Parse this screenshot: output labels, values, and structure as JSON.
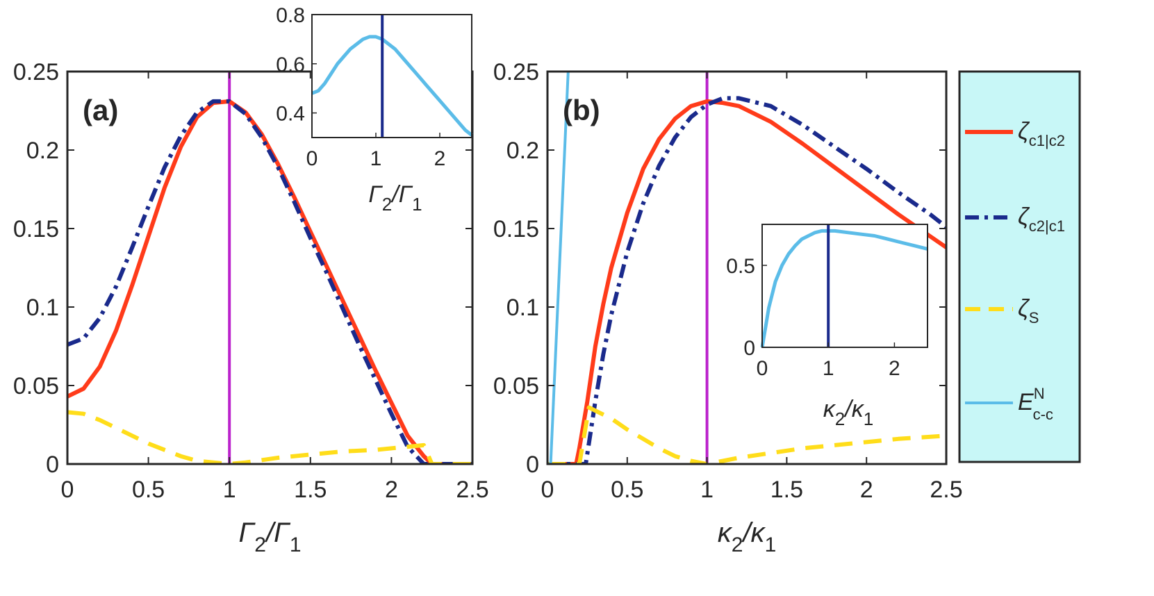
{
  "colors": {
    "c1c2": "#ff3b1a",
    "c2c1": "#1a2a8c",
    "s": "#ffdd1a",
    "ecc": "#5bbce8",
    "marker": "#bb22cc",
    "inset_marker": "#1a2a8c",
    "legend_bg": "#c8f7f7"
  },
  "legend": {
    "items": [
      {
        "symbol": "ζ",
        "sub": "c1|c2",
        "sup": "",
        "style": "solid"
      },
      {
        "symbol": "ζ",
        "sub": "c2|c1",
        "sup": "",
        "style": "dashdot"
      },
      {
        "symbol": "ζ",
        "sub": "S",
        "sup": "",
        "style": "dashed"
      },
      {
        "symbol": "E",
        "sub": "c-c",
        "sup": "N",
        "style": "solid-thin"
      }
    ]
  },
  "chart_data": [
    {
      "id": "a",
      "type": "line",
      "panel_label": "(a)",
      "xlabel": {
        "main": "Γ",
        "sub": "2",
        "sep": "/Γ",
        "sub2": "1"
      },
      "ylabel": "",
      "xlim": [
        0,
        2.5
      ],
      "ylim": [
        0,
        0.25
      ],
      "xticks": [
        "0",
        "0.5",
        "1",
        "1.5",
        "2",
        "2.5"
      ],
      "yticks": [
        "0",
        "0.05",
        "0.1",
        "0.15",
        "0.2",
        "0.25"
      ],
      "vline": 1.0,
      "series": [
        {
          "name": "ζc1|c2",
          "x": [
            0,
            0.1,
            0.2,
            0.3,
            0.4,
            0.5,
            0.6,
            0.7,
            0.8,
            0.9,
            1.0,
            1.1,
            1.2,
            1.3,
            1.4,
            1.5,
            1.6,
            1.7,
            1.8,
            1.9,
            2.0,
            2.1,
            2.2,
            2.25,
            2.5
          ],
          "y": [
            0.043,
            0.048,
            0.062,
            0.085,
            0.114,
            0.145,
            0.176,
            0.202,
            0.221,
            0.23,
            0.231,
            0.224,
            0.21,
            0.191,
            0.17,
            0.148,
            0.126,
            0.104,
            0.082,
            0.06,
            0.039,
            0.018,
            0.005,
            0,
            0
          ]
        },
        {
          "name": "ζc2|c1",
          "x": [
            0,
            0.1,
            0.2,
            0.3,
            0.4,
            0.5,
            0.6,
            0.7,
            0.8,
            0.9,
            1.0,
            1.1,
            1.2,
            1.3,
            1.4,
            1.5,
            1.6,
            1.7,
            1.8,
            1.9,
            2.0,
            2.1,
            2.2,
            2.5
          ],
          "y": [
            0.076,
            0.08,
            0.093,
            0.113,
            0.138,
            0.164,
            0.189,
            0.209,
            0.224,
            0.231,
            0.231,
            0.223,
            0.208,
            0.189,
            0.167,
            0.144,
            0.122,
            0.099,
            0.076,
            0.054,
            0.032,
            0.011,
            0,
            0
          ]
        },
        {
          "name": "ζS",
          "x": [
            0,
            0.1,
            0.2,
            0.3,
            0.4,
            0.5,
            0.6,
            0.7,
            0.8,
            0.9,
            1.0,
            1.1,
            1.3,
            1.5,
            1.7,
            1.9,
            2.1,
            2.2,
            2.25,
            2.5
          ],
          "y": [
            0.033,
            0.032,
            0.028,
            0.023,
            0.018,
            0.013,
            0.009,
            0.005,
            0.002,
            0.001,
            0,
            0.001,
            0.004,
            0.006,
            0.008,
            0.009,
            0.011,
            0.012,
            0,
            0
          ]
        }
      ],
      "inset": {
        "xlim": [
          0,
          2.5
        ],
        "ylim": [
          0.3,
          0.8
        ],
        "xticks": [
          "0",
          "1",
          "2"
        ],
        "yticks": [
          "0.4",
          "0.6",
          "0.8"
        ],
        "xlabel": {
          "main": "Γ",
          "sub": "2",
          "sep": "/Γ",
          "sub2": "1"
        },
        "vline": 1.1,
        "series": [
          {
            "name": "EN c-c",
            "x": [
              0,
              0.1,
              0.2,
              0.3,
              0.4,
              0.5,
              0.6,
              0.7,
              0.8,
              0.9,
              1.0,
              1.1,
              1.2,
              1.3,
              1.4,
              1.5,
              1.6,
              1.7,
              1.8,
              1.9,
              2.0,
              2.1,
              2.2,
              2.3,
              2.4,
              2.5
            ],
            "y": [
              0.48,
              0.49,
              0.52,
              0.56,
              0.6,
              0.63,
              0.66,
              0.68,
              0.7,
              0.71,
              0.71,
              0.7,
              0.68,
              0.66,
              0.63,
              0.6,
              0.57,
              0.54,
              0.51,
              0.48,
              0.45,
              0.42,
              0.39,
              0.36,
              0.33,
              0.31
            ]
          }
        ]
      }
    },
    {
      "id": "b",
      "type": "line",
      "panel_label": "(b)",
      "xlabel": {
        "main": "κ",
        "sub": "2",
        "sep": "/κ",
        "sub2": "1"
      },
      "ylabel": "",
      "xlim": [
        0,
        2.5
      ],
      "ylim": [
        0,
        0.25
      ],
      "xticks": [
        "0",
        "0.5",
        "1",
        "1.5",
        "2",
        "2.5"
      ],
      "yticks": [
        "0",
        "0.05",
        "0.1",
        "0.15",
        "0.2",
        "0.25"
      ],
      "vline": 1.0,
      "series": [
        {
          "name": "ζc1|c2",
          "x": [
            0,
            0.18,
            0.2,
            0.25,
            0.3,
            0.35,
            0.4,
            0.5,
            0.6,
            0.7,
            0.8,
            0.9,
            1.0,
            1.1,
            1.2,
            1.4,
            1.6,
            1.8,
            2.0,
            2.2,
            2.4,
            2.5
          ],
          "y": [
            0,
            0,
            0.01,
            0.04,
            0.075,
            0.102,
            0.125,
            0.16,
            0.188,
            0.207,
            0.22,
            0.228,
            0.231,
            0.23,
            0.228,
            0.218,
            0.204,
            0.189,
            0.174,
            0.159,
            0.145,
            0.138
          ]
        },
        {
          "name": "ζc2|c1",
          "x": [
            0,
            0.24,
            0.3,
            0.35,
            0.4,
            0.5,
            0.6,
            0.7,
            0.8,
            0.9,
            1.0,
            1.1,
            1.2,
            1.4,
            1.6,
            1.8,
            2.0,
            2.2,
            2.4,
            2.5
          ],
          "y": [
            0,
            0,
            0.04,
            0.07,
            0.095,
            0.135,
            0.166,
            0.19,
            0.208,
            0.221,
            0.229,
            0.233,
            0.233,
            0.228,
            0.216,
            0.202,
            0.188,
            0.173,
            0.159,
            0.151
          ]
        },
        {
          "name": "ζS",
          "x": [
            0,
            0.2,
            0.26,
            0.3,
            0.4,
            0.5,
            0.6,
            0.7,
            0.8,
            0.9,
            1.0,
            1.1,
            1.2,
            1.4,
            1.6,
            1.8,
            2.0,
            2.2,
            2.5
          ],
          "y": [
            0,
            0,
            0.036,
            0.034,
            0.029,
            0.022,
            0.016,
            0.01,
            0.005,
            0.002,
            0,
            0.002,
            0.004,
            0.007,
            0.01,
            0.012,
            0.014,
            0.016,
            0.018
          ]
        },
        {
          "name": "EN c-c",
          "x": [
            0,
            0.02,
            0.13
          ],
          "y": [
            0,
            0,
            0.25
          ]
        }
      ],
      "inset": {
        "xlim": [
          0,
          2.5
        ],
        "ylim": [
          0,
          0.75
        ],
        "xticks": [
          "0",
          "1",
          "2"
        ],
        "yticks": [
          "0",
          "0.5"
        ],
        "xlabel": {
          "main": "κ",
          "sub": "2",
          "sep": "/κ",
          "sub2": "1"
        },
        "vline": 1.0,
        "series": [
          {
            "name": "EN c-c",
            "x": [
              0,
              0.05,
              0.1,
              0.2,
              0.3,
              0.4,
              0.5,
              0.6,
              0.7,
              0.8,
              0.9,
              1.0,
              1.1,
              1.3,
              1.5,
              1.7,
              1.9,
              2.1,
              2.3,
              2.5
            ],
            "y": [
              0,
              0.12,
              0.24,
              0.4,
              0.5,
              0.57,
              0.62,
              0.66,
              0.68,
              0.7,
              0.71,
              0.71,
              0.71,
              0.7,
              0.69,
              0.68,
              0.66,
              0.64,
              0.62,
              0.6
            ]
          }
        ]
      }
    }
  ]
}
